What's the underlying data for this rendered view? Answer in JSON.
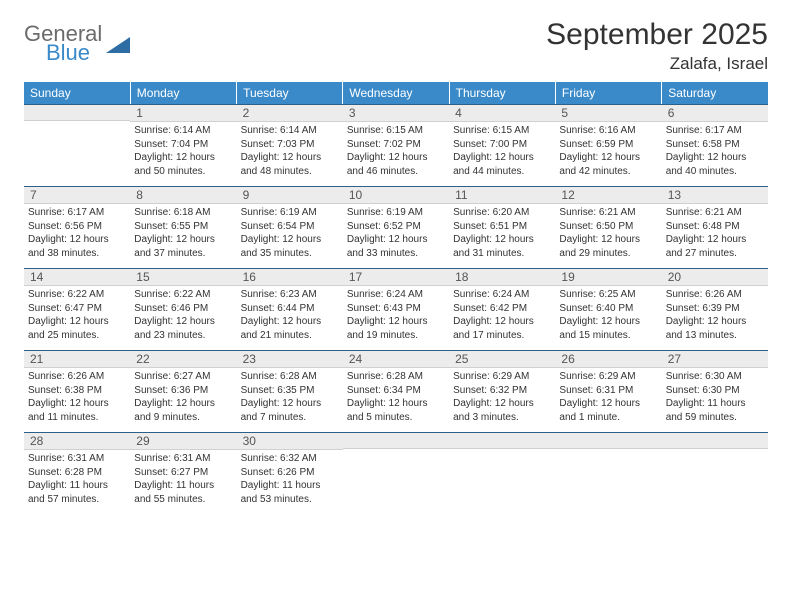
{
  "branding": {
    "logo_word1": "General",
    "logo_word2": "Blue",
    "logo_word1_color": "#6b6b6b",
    "logo_word2_color": "#3a8ac9",
    "shape_color": "#2e6da4"
  },
  "header": {
    "month_title": "September 2025",
    "location": "Zalafa, Israel"
  },
  "styling": {
    "header_bg": "#3a8ac9",
    "header_fg": "#ffffff",
    "daynum_bg": "#ececec",
    "daynum_border_top": "#2e5e8a",
    "body_fg": "#333333",
    "page_bg": "#ffffff",
    "th_fontsize": 12,
    "daynum_fontsize": 12,
    "body_fontsize": 10
  },
  "weekdays": [
    "Sunday",
    "Monday",
    "Tuesday",
    "Wednesday",
    "Thursday",
    "Friday",
    "Saturday"
  ],
  "weeks": [
    [
      {
        "blank": true
      },
      {
        "n": "1",
        "sunrise": "6:14 AM",
        "sunset": "7:04 PM",
        "daylight": "12 hours and 50 minutes."
      },
      {
        "n": "2",
        "sunrise": "6:14 AM",
        "sunset": "7:03 PM",
        "daylight": "12 hours and 48 minutes."
      },
      {
        "n": "3",
        "sunrise": "6:15 AM",
        "sunset": "7:02 PM",
        "daylight": "12 hours and 46 minutes."
      },
      {
        "n": "4",
        "sunrise": "6:15 AM",
        "sunset": "7:00 PM",
        "daylight": "12 hours and 44 minutes."
      },
      {
        "n": "5",
        "sunrise": "6:16 AM",
        "sunset": "6:59 PM",
        "daylight": "12 hours and 42 minutes."
      },
      {
        "n": "6",
        "sunrise": "6:17 AM",
        "sunset": "6:58 PM",
        "daylight": "12 hours and 40 minutes."
      }
    ],
    [
      {
        "n": "7",
        "sunrise": "6:17 AM",
        "sunset": "6:56 PM",
        "daylight": "12 hours and 38 minutes."
      },
      {
        "n": "8",
        "sunrise": "6:18 AM",
        "sunset": "6:55 PM",
        "daylight": "12 hours and 37 minutes."
      },
      {
        "n": "9",
        "sunrise": "6:19 AM",
        "sunset": "6:54 PM",
        "daylight": "12 hours and 35 minutes."
      },
      {
        "n": "10",
        "sunrise": "6:19 AM",
        "sunset": "6:52 PM",
        "daylight": "12 hours and 33 minutes."
      },
      {
        "n": "11",
        "sunrise": "6:20 AM",
        "sunset": "6:51 PM",
        "daylight": "12 hours and 31 minutes."
      },
      {
        "n": "12",
        "sunrise": "6:21 AM",
        "sunset": "6:50 PM",
        "daylight": "12 hours and 29 minutes."
      },
      {
        "n": "13",
        "sunrise": "6:21 AM",
        "sunset": "6:48 PM",
        "daylight": "12 hours and 27 minutes."
      }
    ],
    [
      {
        "n": "14",
        "sunrise": "6:22 AM",
        "sunset": "6:47 PM",
        "daylight": "12 hours and 25 minutes."
      },
      {
        "n": "15",
        "sunrise": "6:22 AM",
        "sunset": "6:46 PM",
        "daylight": "12 hours and 23 minutes."
      },
      {
        "n": "16",
        "sunrise": "6:23 AM",
        "sunset": "6:44 PM",
        "daylight": "12 hours and 21 minutes."
      },
      {
        "n": "17",
        "sunrise": "6:24 AM",
        "sunset": "6:43 PM",
        "daylight": "12 hours and 19 minutes."
      },
      {
        "n": "18",
        "sunrise": "6:24 AM",
        "sunset": "6:42 PM",
        "daylight": "12 hours and 17 minutes."
      },
      {
        "n": "19",
        "sunrise": "6:25 AM",
        "sunset": "6:40 PM",
        "daylight": "12 hours and 15 minutes."
      },
      {
        "n": "20",
        "sunrise": "6:26 AM",
        "sunset": "6:39 PM",
        "daylight": "12 hours and 13 minutes."
      }
    ],
    [
      {
        "n": "21",
        "sunrise": "6:26 AM",
        "sunset": "6:38 PM",
        "daylight": "12 hours and 11 minutes."
      },
      {
        "n": "22",
        "sunrise": "6:27 AM",
        "sunset": "6:36 PM",
        "daylight": "12 hours and 9 minutes."
      },
      {
        "n": "23",
        "sunrise": "6:28 AM",
        "sunset": "6:35 PM",
        "daylight": "12 hours and 7 minutes."
      },
      {
        "n": "24",
        "sunrise": "6:28 AM",
        "sunset": "6:34 PM",
        "daylight": "12 hours and 5 minutes."
      },
      {
        "n": "25",
        "sunrise": "6:29 AM",
        "sunset": "6:32 PM",
        "daylight": "12 hours and 3 minutes."
      },
      {
        "n": "26",
        "sunrise": "6:29 AM",
        "sunset": "6:31 PM",
        "daylight": "12 hours and 1 minute."
      },
      {
        "n": "27",
        "sunrise": "6:30 AM",
        "sunset": "6:30 PM",
        "daylight": "11 hours and 59 minutes."
      }
    ],
    [
      {
        "n": "28",
        "sunrise": "6:31 AM",
        "sunset": "6:28 PM",
        "daylight": "11 hours and 57 minutes."
      },
      {
        "n": "29",
        "sunrise": "6:31 AM",
        "sunset": "6:27 PM",
        "daylight": "11 hours and 55 minutes."
      },
      {
        "n": "30",
        "sunrise": "6:32 AM",
        "sunset": "6:26 PM",
        "daylight": "11 hours and 53 minutes."
      },
      {
        "blank": true
      },
      {
        "blank": true
      },
      {
        "blank": true
      },
      {
        "blank": true
      }
    ]
  ],
  "labels": {
    "sunrise_prefix": "Sunrise: ",
    "sunset_prefix": "Sunset: ",
    "daylight_prefix": "Daylight: "
  }
}
